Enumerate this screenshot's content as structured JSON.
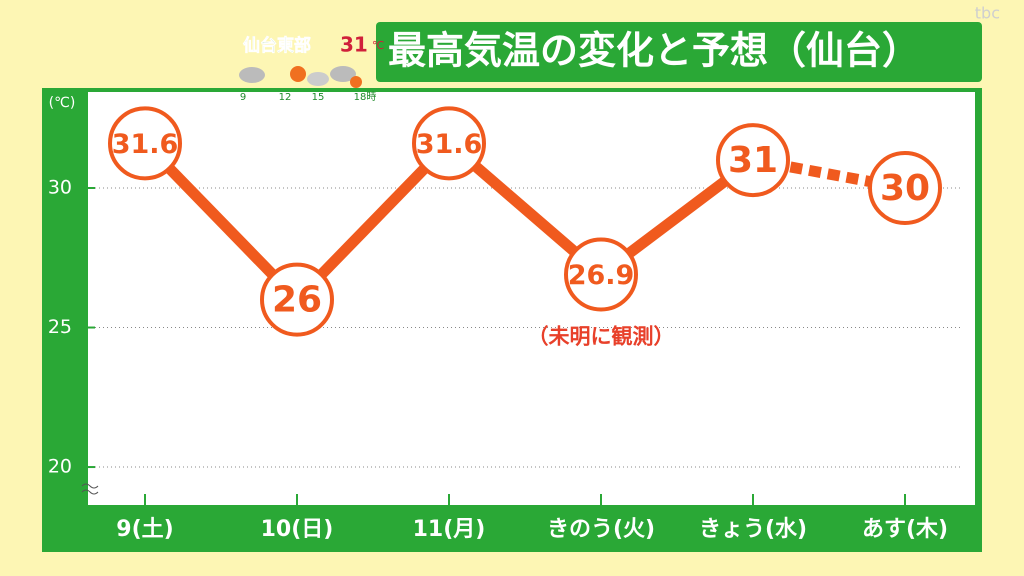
{
  "chart_data": {
    "type": "line",
    "title": "最高気温の変化と予想（仙台）",
    "y_unit_label": "(℃)",
    "annotation": "（未明に観測）",
    "annotation_index": 3,
    "categories": [
      "9(土)",
      "10(日)",
      "11(月)",
      "きのう(火)",
      "きょう(水)",
      "あす(木)"
    ],
    "values": [
      31.6,
      26,
      31.6,
      26.9,
      31,
      30
    ],
    "color": "#f05a1e",
    "forecast_start_index": 4,
    "ylim": [
      18.64,
      33.44
    ],
    "yticks": [
      20,
      25,
      30
    ],
    "grid": true
  },
  "inset": {
    "location": "仙台東部",
    "temperature": 31,
    "unit": "℃",
    "hours": [
      "9",
      "12",
      "15",
      "18時"
    ]
  },
  "watermark": "tbc"
}
